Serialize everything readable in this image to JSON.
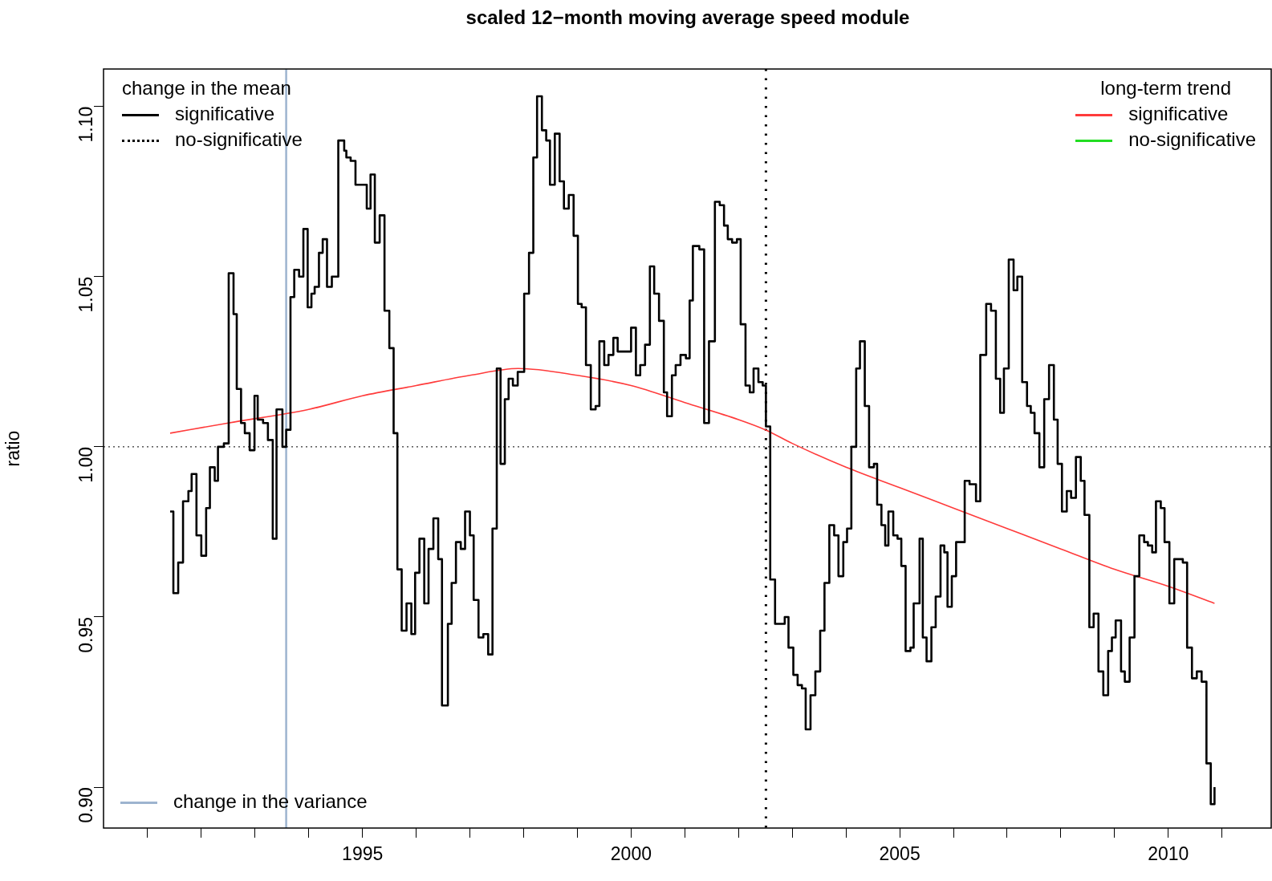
{
  "chart_data": {
    "type": "step",
    "title": "scaled 12−month moving average speed module",
    "ylabel": "ratio",
    "xlim": [
      1990.18,
      2011.93
    ],
    "ylim": [
      0.888,
      1.111
    ],
    "xticks": [
      {
        "value": 1991,
        "label": null
      },
      {
        "value": 1992,
        "label": null
      },
      {
        "value": 1993,
        "label": null
      },
      {
        "value": 1994,
        "label": null
      },
      1995,
      {
        "value": 1996,
        "label": null
      },
      {
        "value": 1997,
        "label": null
      },
      {
        "value": 1998,
        "label": null
      },
      {
        "value": 1999,
        "label": null
      },
      2000,
      {
        "value": 2001,
        "label": null
      },
      {
        "value": 2002,
        "label": null
      },
      {
        "value": 2003,
        "label": null
      },
      {
        "value": 2004,
        "label": null
      },
      2005,
      {
        "value": 2006,
        "label": null
      },
      {
        "value": 2007,
        "label": null
      },
      {
        "value": 2008,
        "label": null
      },
      {
        "value": 2009,
        "label": null
      },
      2010,
      {
        "value": 2011,
        "label": null
      }
    ],
    "yticks": [
      {
        "value": 0.9,
        "label": "0.90"
      },
      {
        "value": 0.95,
        "label": "0.95"
      },
      {
        "value": 1.0,
        "label": "1.00"
      },
      {
        "value": 1.05,
        "label": "1.05"
      },
      {
        "value": 1.1,
        "label": "1.10"
      }
    ],
    "grid": false,
    "legend": "top right",
    "annotations": [
      "change in the mean",
      "significative",
      "no-significative",
      "long-term trend",
      "no-significative"
    ],
    "ref_lines": [
      {
        "axis": "y",
        "value": 1.0,
        "line_style": "dotted",
        "color": "#000000"
      },
      {
        "axis": "x",
        "value": 2002.51,
        "line_style": "dotted",
        "color": "#000000"
      },
      {
        "axis": "x",
        "value": 1993.58,
        "line_style": "solid",
        "color": "#9db4cf",
        "label": "change in the variance"
      }
    ],
    "series": [
      {
        "type": "step",
        "color": "#000000",
        "x": [
          1991.42,
          1991.48,
          1991.57,
          1991.66,
          1991.76,
          1991.82,
          1991.91,
          1992.0,
          1992.09,
          1992.16,
          1992.25,
          1992.31,
          1992.42,
          1992.51,
          1992.6,
          1992.66,
          1992.74,
          1992.81,
          1992.9,
          1992.99,
          1993.05,
          1993.15,
          1993.24,
          1993.33,
          1993.4,
          1993.51,
          1993.58,
          1993.66,
          1993.73,
          1993.82,
          1993.9,
          1993.98,
          1994.05,
          1994.11,
          1994.19,
          1994.26,
          1994.34,
          1994.43,
          1994.55,
          1994.66,
          1994.7,
          1994.78,
          1994.87,
          1995.08,
          1995.15,
          1995.23,
          1995.32,
          1995.41,
          1995.5,
          1995.58,
          1995.65,
          1995.73,
          1995.82,
          1995.91,
          1995.98,
          1996.06,
          1996.15,
          1996.23,
          1996.32,
          1996.41,
          1996.48,
          1996.59,
          1996.66,
          1996.74,
          1996.83,
          1996.91,
          1997.0,
          1997.07,
          1997.16,
          1997.25,
          1997.34,
          1997.42,
          1997.5,
          1997.57,
          1997.65,
          1997.72,
          1997.8,
          1997.89,
          1998.01,
          1998.1,
          1998.18,
          1998.25,
          1998.34,
          1998.42,
          1998.49,
          1998.58,
          1998.67,
          1998.75,
          1998.84,
          1998.93,
          1999.01,
          1999.08,
          1999.16,
          1999.25,
          1999.34,
          1999.41,
          1999.5,
          1999.58,
          1999.67,
          1999.75,
          2000.0,
          2000.09,
          2000.17,
          2000.26,
          2000.35,
          2000.43,
          2000.52,
          2000.61,
          2000.67,
          2000.76,
          2000.83,
          2000.92,
          2001.02,
          2001.09,
          2001.15,
          2001.27,
          2001.36,
          2001.45,
          2001.56,
          2001.65,
          2001.73,
          2001.8,
          2001.88,
          2001.97,
          2002.04,
          2002.13,
          2002.21,
          2002.28,
          2002.37,
          2002.45,
          2002.51,
          2002.59,
          2002.68,
          2002.78,
          2002.86,
          2002.93,
          2003.02,
          2003.1,
          2003.18,
          2003.25,
          2003.34,
          2003.43,
          2003.52,
          2003.6,
          2003.69,
          2003.78,
          2003.86,
          2003.95,
          2004.02,
          2004.1,
          2004.19,
          2004.26,
          2004.35,
          2004.43,
          2004.52,
          2004.58,
          2004.66,
          2004.73,
          2004.79,
          2004.88,
          2004.96,
          2005.03,
          2005.11,
          2005.2,
          2005.26,
          2005.37,
          2005.43,
          2005.5,
          2005.59,
          2005.67,
          2005.76,
          2005.83,
          2005.89,
          2005.97,
          2006.05,
          2006.14,
          2006.21,
          2006.3,
          2006.42,
          2006.5,
          2006.61,
          2006.7,
          2006.79,
          2006.87,
          2006.94,
          2007.03,
          2007.12,
          2007.19,
          2007.28,
          2007.37,
          2007.44,
          2007.51,
          2007.6,
          2007.69,
          2007.78,
          2007.87,
          2007.94,
          2008.02,
          2008.11,
          2008.19,
          2008.28,
          2008.37,
          2008.44,
          2008.53,
          2008.61,
          2008.7,
          2008.79,
          2008.88,
          2008.95,
          2009.02,
          2009.12,
          2009.19,
          2009.28,
          2009.37,
          2009.46,
          2009.55,
          2009.62,
          2009.7,
          2009.77,
          2009.86,
          2009.93,
          2010.02,
          2010.11,
          2010.18,
          2010.27,
          2010.35,
          2010.44,
          2010.53,
          2010.62,
          2010.71,
          2010.79,
          2010.86
        ],
        "values": [
          0.981,
          0.957,
          0.966,
          0.984,
          0.987,
          0.992,
          0.974,
          0.968,
          0.982,
          0.994,
          0.99,
          1.0,
          1.001,
          1.051,
          1.039,
          1.017,
          1.007,
          1.004,
          0.999,
          1.015,
          1.008,
          1.007,
          1.002,
          0.973,
          1.011,
          1.0,
          1.005,
          1.044,
          1.052,
          1.05,
          1.064,
          1.041,
          1.045,
          1.047,
          1.057,
          1.061,
          1.047,
          1.05,
          1.09,
          1.087,
          1.085,
          1.084,
          1.077,
          1.07,
          1.08,
          1.06,
          1.068,
          1.04,
          1.029,
          1.004,
          0.964,
          0.946,
          0.954,
          0.945,
          0.963,
          0.973,
          0.954,
          0.97,
          0.979,
          0.967,
          0.924,
          0.948,
          0.96,
          0.972,
          0.97,
          0.981,
          0.974,
          0.955,
          0.944,
          0.945,
          0.939,
          0.976,
          1.023,
          0.995,
          1.014,
          1.02,
          1.018,
          1.022,
          1.045,
          1.057,
          1.085,
          1.103,
          1.093,
          1.09,
          1.077,
          1.092,
          1.078,
          1.07,
          1.074,
          1.062,
          1.042,
          1.041,
          1.024,
          1.011,
          1.012,
          1.031,
          1.024,
          1.027,
          1.032,
          1.028,
          1.035,
          1.021,
          1.024,
          1.03,
          1.053,
          1.045,
          1.037,
          1.016,
          1.009,
          1.021,
          1.024,
          1.027,
          1.026,
          1.043,
          1.059,
          1.058,
          1.007,
          1.031,
          1.072,
          1.071,
          1.065,
          1.061,
          1.06,
          1.061,
          1.036,
          1.018,
          1.016,
          1.023,
          1.019,
          1.018,
          1.006,
          0.961,
          0.948,
          0.948,
          0.95,
          0.941,
          0.933,
          0.93,
          0.929,
          0.917,
          0.927,
          0.934,
          0.946,
          0.96,
          0.977,
          0.974,
          0.962,
          0.972,
          0.976,
          1.0,
          1.023,
          1.031,
          1.012,
          0.994,
          0.995,
          0.983,
          0.977,
          0.971,
          0.981,
          0.974,
          0.973,
          0.965,
          0.94,
          0.941,
          0.954,
          0.973,
          0.944,
          0.937,
          0.947,
          0.956,
          0.971,
          0.969,
          0.953,
          0.962,
          0.972,
          0.972,
          0.99,
          0.989,
          0.984,
          1.027,
          1.042,
          1.04,
          1.02,
          1.01,
          1.023,
          1.055,
          1.046,
          1.05,
          1.019,
          1.012,
          1.01,
          1.004,
          0.994,
          1.014,
          1.024,
          1.008,
          0.995,
          0.981,
          0.987,
          0.985,
          0.997,
          0.99,
          0.98,
          0.947,
          0.951,
          0.934,
          0.927,
          0.94,
          0.944,
          0.949,
          0.934,
          0.931,
          0.944,
          0.962,
          0.974,
          0.972,
          0.971,
          0.969,
          0.984,
          0.982,
          0.972,
          0.954,
          0.967,
          0.967,
          0.966,
          0.941,
          0.932,
          0.934,
          0.931,
          0.907,
          0.895,
          0.9
        ]
      },
      {
        "type": "line",
        "name": "significative",
        "color": "#ff3b3b",
        "x": [
          1991.42,
          1992.5,
          1994,
          1995,
          1996,
          1997,
          1997.9,
          1999,
          2000,
          2001,
          2002,
          2002.5,
          2003,
          2004,
          2005,
          2006,
          2007,
          2008,
          2009,
          2010,
          2010.86
        ],
        "values": [
          1.004,
          1.007,
          1.011,
          1.015,
          1.018,
          1.021,
          1.023,
          1.021,
          1.018,
          1.013,
          1.008,
          1.005,
          1.001,
          0.994,
          0.988,
          0.982,
          0.976,
          0.97,
          0.964,
          0.959,
          0.954
        ]
      }
    ]
  }
}
